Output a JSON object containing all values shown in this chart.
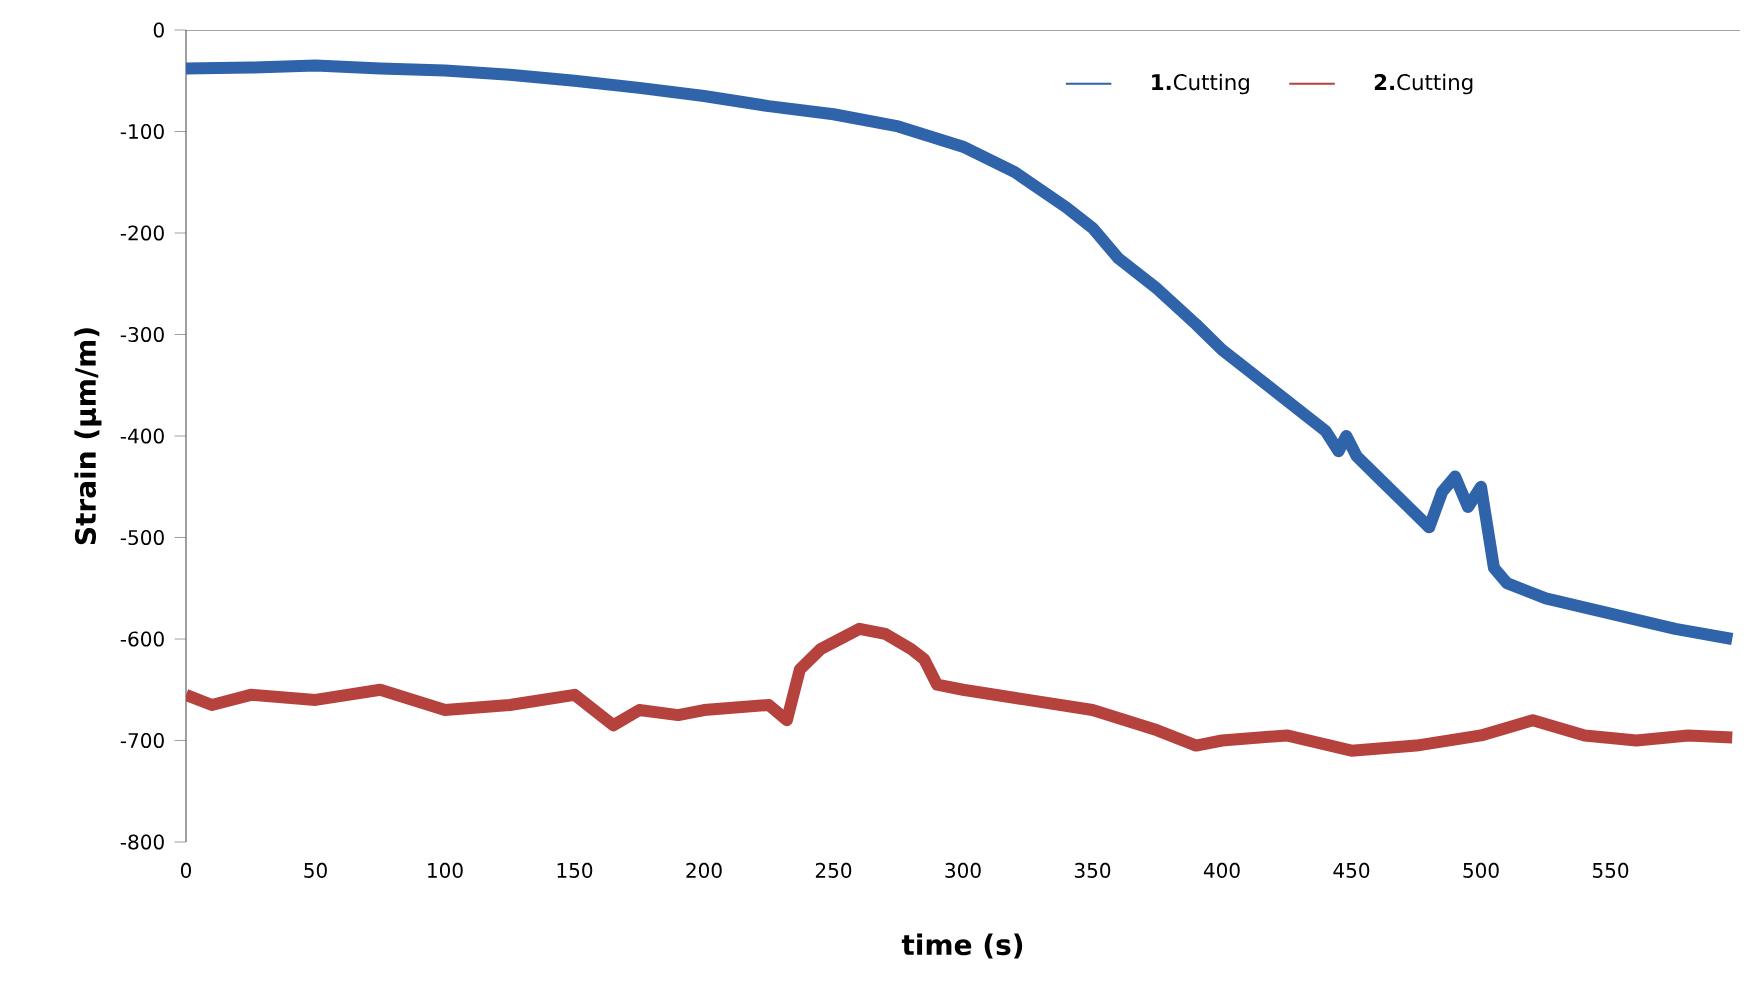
{
  "chart_data": {
    "type": "line",
    "xlabel": "time (s)",
    "ylabel": "Strain (µm/m)",
    "xlim": [
      0,
      600
    ],
    "ylim": [
      -800,
      0
    ],
    "xticks": [
      0,
      50,
      100,
      150,
      200,
      250,
      300,
      350,
      400,
      450,
      500,
      550
    ],
    "yticks": [
      -800,
      -700,
      -600,
      -500,
      -400,
      -300,
      -200,
      -100,
      0
    ],
    "legend": "top right",
    "grid": false,
    "marker": "none",
    "line_style": "solid",
    "series": [
      {
        "name": "**1.**Cutting",
        "color": "#2f63aa",
        "x": [
          0,
          25,
          50,
          75,
          100,
          125,
          150,
          175,
          200,
          225,
          250,
          275,
          300,
          320,
          340,
          350,
          360,
          375,
          390,
          400,
          420,
          440,
          445,
          448,
          452,
          460,
          470,
          480,
          485,
          490,
          495,
          500,
          505,
          510,
          525,
          550,
          575,
          597
        ],
        "values": [
          -38,
          -37,
          -35,
          -38,
          -40,
          -44,
          -50,
          -57,
          -65,
          -75,
          -83,
          -95,
          -115,
          -140,
          -175,
          -195,
          -225,
          -255,
          -290,
          -315,
          -355,
          -395,
          -415,
          -400,
          -420,
          -440,
          -465,
          -490,
          -455,
          -440,
          -470,
          -450,
          -530,
          -545,
          -560,
          -575,
          -590,
          -600
        ]
      },
      {
        "name": "**2.**Cutting",
        "color": "#b5423d",
        "x": [
          0,
          10,
          25,
          50,
          75,
          100,
          125,
          150,
          165,
          175,
          190,
          200,
          225,
          232,
          237,
          245,
          260,
          270,
          280,
          285,
          290,
          300,
          325,
          350,
          375,
          390,
          400,
          425,
          450,
          475,
          500,
          520,
          540,
          560,
          580,
          597
        ],
        "values": [
          -655,
          -665,
          -655,
          -660,
          -650,
          -670,
          -665,
          -655,
          -685,
          -670,
          -675,
          -670,
          -665,
          -680,
          -630,
          -610,
          -590,
          -595,
          -610,
          -620,
          -645,
          -650,
          -660,
          -670,
          -690,
          -705,
          -700,
          -695,
          -710,
          -705,
          -695,
          -680,
          -695,
          -700,
          -695,
          -697
        ]
      }
    ]
  }
}
